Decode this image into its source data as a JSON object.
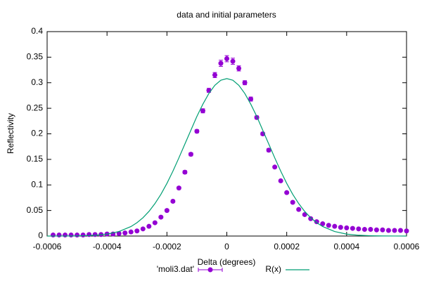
{
  "chart_data": {
    "type": "scatter",
    "title": "data and initial parameters",
    "x_label": "Delta (degrees)",
    "y_label": "Reflectivity",
    "xlim": [
      -0.0006,
      0.0006
    ],
    "xticks": [
      -0.0006,
      -0.0004,
      -0.0002,
      0,
      0.0002,
      0.0004,
      0.0006
    ],
    "ylim": [
      0,
      0.4
    ],
    "yticks": [
      0,
      0.05,
      0.1,
      0.15,
      0.2,
      0.25,
      0.3,
      0.35,
      0.4
    ],
    "legend": "bottom",
    "series": [
      {
        "name": "'moli3.dat'",
        "type": "scatter",
        "color": "#9400d3",
        "x": [
          -0.00058,
          -0.00056,
          -0.00054,
          -0.00052,
          -0.0005,
          -0.00048,
          -0.00046,
          -0.00044,
          -0.00042,
          -0.0004,
          -0.00038,
          -0.00036,
          -0.00034,
          -0.00032,
          -0.0003,
          -0.00028,
          -0.00026,
          -0.00024,
          -0.00022,
          -0.0002,
          -0.00018,
          -0.00016,
          -0.00014,
          -0.00012,
          -0.0001,
          -8e-05,
          -6e-05,
          -4e-05,
          -2e-05,
          0,
          2e-05,
          4e-05,
          6e-05,
          8e-05,
          0.0001,
          0.00012,
          0.00014,
          0.00016,
          0.00018,
          0.0002,
          0.00022,
          0.00024,
          0.00026,
          0.00028,
          0.0003,
          0.00032,
          0.00034,
          0.00036,
          0.00038,
          0.0004,
          0.00042,
          0.00044,
          0.00046,
          0.00048,
          0.0005,
          0.00052,
          0.00054,
          0.00056,
          0.00058,
          0.0006
        ],
        "values": [
          0.002,
          0.002,
          0.002,
          0.002,
          0.002,
          0.002,
          0.003,
          0.003,
          0.003,
          0.004,
          0.004,
          0.005,
          0.006,
          0.008,
          0.01,
          0.014,
          0.019,
          0.026,
          0.037,
          0.05,
          0.068,
          0.094,
          0.125,
          0.16,
          0.205,
          0.245,
          0.285,
          0.315,
          0.338,
          0.347,
          0.342,
          0.328,
          0.3,
          0.268,
          0.232,
          0.2,
          0.168,
          0.135,
          0.108,
          0.085,
          0.066,
          0.052,
          0.042,
          0.034,
          0.028,
          0.024,
          0.021,
          0.019,
          0.017,
          0.016,
          0.015,
          0.014,
          0.013,
          0.013,
          0.012,
          0.012,
          0.011,
          0.011,
          0.011,
          0.01
        ],
        "errors": [
          0.001,
          0.001,
          0.001,
          0.001,
          0.001,
          0.001,
          0.001,
          0.001,
          0.001,
          0.001,
          0.001,
          0.001,
          0.001,
          0.001,
          0.001,
          0.001,
          0.001,
          0.001,
          0.002,
          0.002,
          0.002,
          0.002,
          0.003,
          0.003,
          0.003,
          0.004,
          0.004,
          0.005,
          0.006,
          0.006,
          0.006,
          0.005,
          0.004,
          0.004,
          0.003,
          0.003,
          0.003,
          0.002,
          0.002,
          0.002,
          0.002,
          0.002,
          0.001,
          0.001,
          0.001,
          0.001,
          0.001,
          0.001,
          0.001,
          0.001,
          0.001,
          0.001,
          0.001,
          0.001,
          0.001,
          0.001,
          0.001,
          0.001,
          0.001,
          0.001
        ]
      },
      {
        "name": "R(x)",
        "type": "line",
        "color": "#009e73",
        "x": [
          -0.0006,
          -0.00056,
          -0.00052,
          -0.00048,
          -0.00044,
          -0.0004,
          -0.00036,
          -0.00032,
          -0.0003,
          -0.00028,
          -0.00026,
          -0.00024,
          -0.00022,
          -0.0002,
          -0.00018,
          -0.00016,
          -0.00014,
          -0.00012,
          -0.0001,
          -8e-05,
          -6e-05,
          -4e-05,
          -2e-05,
          0,
          2e-05,
          4e-05,
          6e-05,
          8e-05,
          0.0001,
          0.00012,
          0.00014,
          0.00016,
          0.00018,
          0.0002,
          0.00022,
          0.00024,
          0.00026,
          0.00028,
          0.0003,
          0.00032,
          0.00036,
          0.0004,
          0.00044,
          0.00048,
          0.00052,
          0.00056,
          0.0006
        ],
        "values": [
          0,
          0.0001,
          0.0002,
          0.0006,
          0.0015,
          0.0038,
          0.0088,
          0.0186,
          0.0261,
          0.0358,
          0.0482,
          0.0635,
          0.0817,
          0.103,
          0.127,
          0.153,
          0.18,
          0.207,
          0.234,
          0.258,
          0.279,
          0.295,
          0.305,
          0.308,
          0.305,
          0.295,
          0.279,
          0.258,
          0.234,
          0.207,
          0.18,
          0.153,
          0.127,
          0.103,
          0.0817,
          0.0635,
          0.0482,
          0.0358,
          0.0261,
          0.0186,
          0.0088,
          0.0038,
          0.0015,
          0.0006,
          0.0002,
          0.0001,
          0
        ]
      }
    ]
  }
}
